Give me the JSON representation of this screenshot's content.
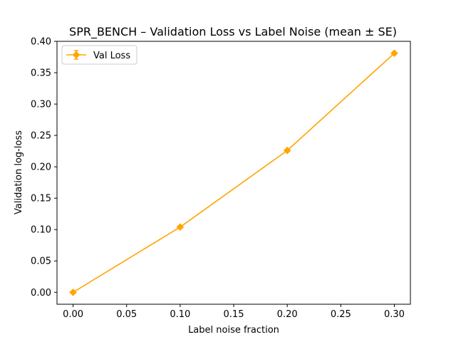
{
  "chart_data": {
    "type": "line",
    "title": "SPR_BENCH – Validation Loss vs Label Noise (mean ± SE)",
    "xlabel": "Label noise fraction",
    "ylabel": "Validation log-loss",
    "xlim": [
      -0.015,
      0.315
    ],
    "ylim": [
      -0.019,
      0.4
    ],
    "xticks": [
      "0.00",
      "0.05",
      "0.10",
      "0.15",
      "0.20",
      "0.25",
      "0.30"
    ],
    "yticks": [
      "0.00",
      "0.05",
      "0.10",
      "0.15",
      "0.20",
      "0.25",
      "0.30",
      "0.35",
      "0.40"
    ],
    "grid": false,
    "legend_position": "top-left",
    "series": [
      {
        "name": "Val Loss",
        "color": "#ffa500",
        "marker": "diamond",
        "x": [
          0.0,
          0.1,
          0.2,
          0.3
        ],
        "y": [
          0.0,
          0.104,
          0.226,
          0.381
        ],
        "se": [
          0.002,
          0.002,
          0.002,
          0.002
        ]
      }
    ]
  }
}
